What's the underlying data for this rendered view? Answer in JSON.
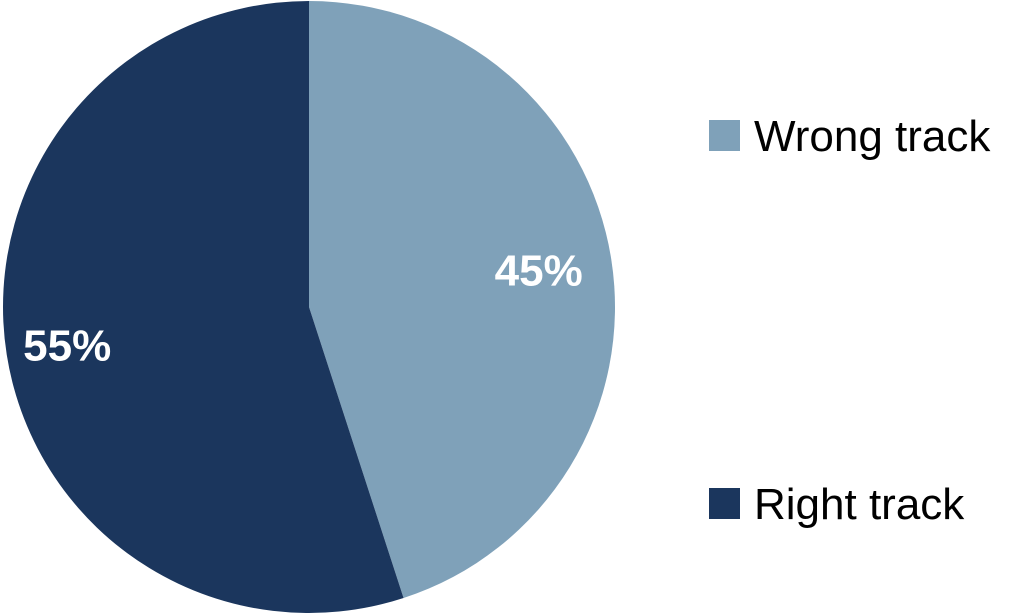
{
  "chart_data": {
    "type": "pie",
    "title": "",
    "start_angle_deg": 0,
    "direction": "clockwise",
    "legend_position": "right",
    "slices": [
      {
        "label": "Wrong track",
        "value": 45,
        "display": "45%",
        "color": "#7fa1b9"
      },
      {
        "label": "Right track",
        "value": 55,
        "display": "55%",
        "color": "#1b365d"
      }
    ]
  }
}
